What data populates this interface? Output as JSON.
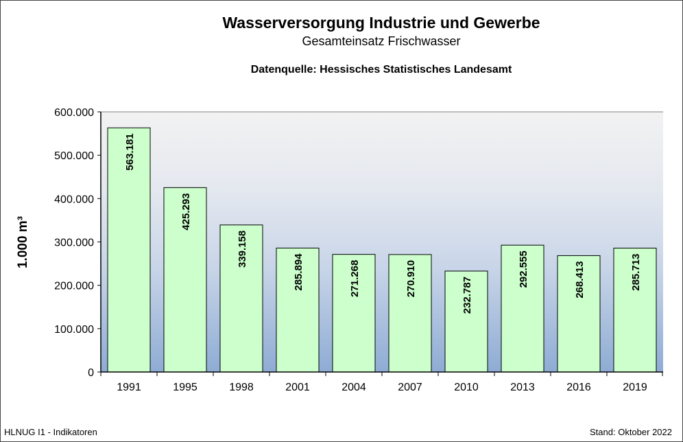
{
  "chart_data": {
    "type": "bar",
    "title": "Wasserversorgung Industrie und Gewerbe",
    "subtitle": "Gesamteinsatz Frischwasser",
    "source": "Datenquelle: Hessisches Statistisches Landesamt",
    "xlabel": "",
    "ylabel": "1.000 m³",
    "ylim": [
      0,
      600000
    ],
    "yticks": [
      0,
      100000,
      200000,
      300000,
      400000,
      500000,
      600000
    ],
    "ytick_labels": [
      "0",
      "100.000",
      "200.000",
      "300.000",
      "400.000",
      "500.000",
      "600.000"
    ],
    "categories": [
      "1991",
      "1995",
      "1998",
      "2001",
      "2004",
      "2007",
      "2010",
      "2013",
      "2016",
      "2019"
    ],
    "values": [
      563181,
      425293,
      339158,
      285894,
      271268,
      270910,
      232787,
      292555,
      268413,
      285713
    ],
    "data_labels": [
      "563.181",
      "425.293",
      "339.158",
      "285.894",
      "271.268",
      "270.910",
      "232.787",
      "292.555",
      "268.413",
      "285.713"
    ],
    "grid": false,
    "legend": "none",
    "colors": {
      "bar": "#ccffcc",
      "bg_top": "#f2f2f2",
      "bg_bottom": "#8eacd4"
    }
  },
  "footer": {
    "left": "HLNUG I1 - Indikatoren",
    "right": "Stand: Oktober 2022"
  }
}
